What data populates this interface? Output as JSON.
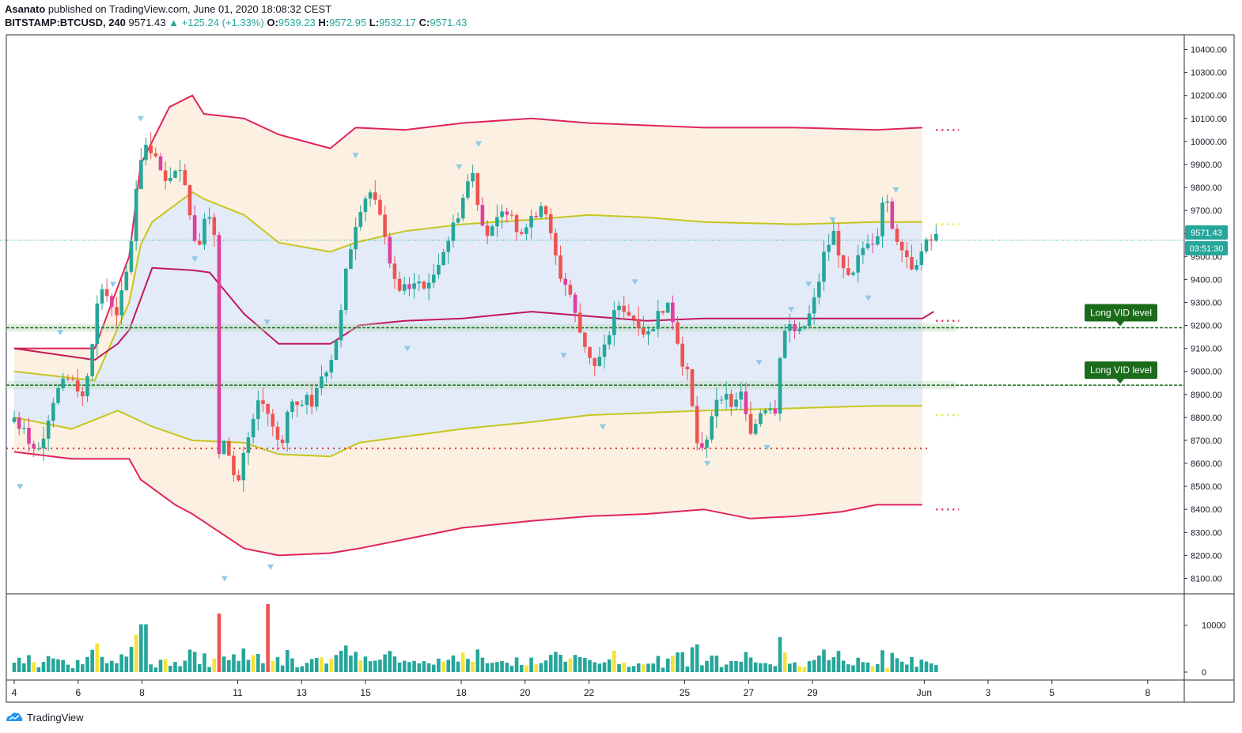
{
  "header": {
    "author": "Asanato",
    "published": "published on TradingView.com, June 01, 2020 18:08:32 CEST",
    "symbol": "BITSTAMP:BTCUSD, 240",
    "last": "9571.43",
    "change": "▲ +125.24 (+1.33%)",
    "o_label": "O:",
    "o": "9539.23",
    "h_label": "H:",
    "h": "9572.95",
    "l_label": "L:",
    "l": "9532.17",
    "c_label": "C:",
    "c": "9571.43"
  },
  "price_badge": "9571.43",
  "countdown_badge": "03:51:30",
  "annotations": [
    {
      "text": "Long VID level",
      "price": 9190
    },
    {
      "text": "Long VID level",
      "price": 8940
    }
  ],
  "footer": {
    "brand": "TradingView"
  },
  "colors": {
    "up": "#26a69a",
    "down": "#ef5350",
    "band": "#e0245e",
    "inner": "#c6c61f",
    "vid": "#1b6b1b"
  },
  "chart_data": {
    "type": "candlestick",
    "symbol": "BITSTAMP:BTCUSD",
    "interval": "240",
    "ylim": [
      8050,
      10450
    ],
    "y_ticks": [
      8100,
      8200,
      8300,
      8400,
      8500,
      8600,
      8700,
      8800,
      8900,
      9000,
      9100,
      9200,
      9300,
      9400,
      9500,
      9600,
      9700,
      9800,
      9900,
      10000,
      10100,
      10200,
      10300,
      10400
    ],
    "x_ticks": [
      {
        "label": "4",
        "pos": 0.0
      },
      {
        "label": "6",
        "pos": 0.0556
      },
      {
        "label": "8",
        "pos": 0.1111
      },
      {
        "label": "11",
        "pos": 0.1944
      },
      {
        "label": "13",
        "pos": 0.25
      },
      {
        "label": "15",
        "pos": 0.3056
      },
      {
        "label": "18",
        "pos": 0.3889
      },
      {
        "label": "20",
        "pos": 0.4444
      },
      {
        "label": "22",
        "pos": 0.5
      },
      {
        "label": "25",
        "pos": 0.5833
      },
      {
        "label": "27",
        "pos": 0.6389
      },
      {
        "label": "29",
        "pos": 0.6944
      },
      {
        "label": "Jun",
        "pos": 0.7917
      },
      {
        "label": "3",
        "pos": 0.8472
      },
      {
        "label": "5",
        "pos": 0.9028
      },
      {
        "label": "8",
        "pos": 0.9861
      }
    ],
    "close_path": [
      [
        0,
        8800
      ],
      [
        0.01,
        8720
      ],
      [
        0.02,
        8640
      ],
      [
        0.035,
        8900
      ],
      [
        0.05,
        8980
      ],
      [
        0.06,
        8880
      ],
      [
        0.075,
        9380
      ],
      [
        0.09,
        9250
      ],
      [
        0.1,
        9480
      ],
      [
        0.108,
        9900
      ],
      [
        0.115,
        10000
      ],
      [
        0.122,
        9950
      ],
      [
        0.13,
        9800
      ],
      [
        0.14,
        9900
      ],
      [
        0.148,
        9850
      ],
      [
        0.155,
        9600
      ],
      [
        0.16,
        9550
      ],
      [
        0.168,
        9750
      ],
      [
        0.175,
        9550
      ],
      [
        0.178,
        8630
      ],
      [
        0.185,
        8700
      ],
      [
        0.19,
        8560
      ],
      [
        0.195,
        8520
      ],
      [
        0.2,
        8650
      ],
      [
        0.207,
        8750
      ],
      [
        0.213,
        8880
      ],
      [
        0.22,
        8830
      ],
      [
        0.228,
        8700
      ],
      [
        0.235,
        8720
      ],
      [
        0.24,
        8900
      ],
      [
        0.247,
        8860
      ],
      [
        0.253,
        8900
      ],
      [
        0.26,
        8850
      ],
      [
        0.267,
        8980
      ],
      [
        0.275,
        9050
      ],
      [
        0.283,
        9200
      ],
      [
        0.29,
        9480
      ],
      [
        0.297,
        9650
      ],
      [
        0.303,
        9750
      ],
      [
        0.31,
        9780
      ],
      [
        0.317,
        9680
      ],
      [
        0.323,
        9600
      ],
      [
        0.33,
        9380
      ],
      [
        0.34,
        9350
      ],
      [
        0.35,
        9400
      ],
      [
        0.36,
        9350
      ],
      [
        0.37,
        9500
      ],
      [
        0.38,
        9600
      ],
      [
        0.39,
        9750
      ],
      [
        0.398,
        9880
      ],
      [
        0.405,
        9700
      ],
      [
        0.413,
        9580
      ],
      [
        0.42,
        9650
      ],
      [
        0.43,
        9720
      ],
      [
        0.437,
        9600
      ],
      [
        0.445,
        9650
      ],
      [
        0.455,
        9700
      ],
      [
        0.46,
        9760
      ],
      [
        0.468,
        9550
      ],
      [
        0.475,
        9420
      ],
      [
        0.483,
        9350
      ],
      [
        0.49,
        9200
      ],
      [
        0.498,
        9100
      ],
      [
        0.505,
        9020
      ],
      [
        0.513,
        9080
      ],
      [
        0.52,
        9220
      ],
      [
        0.527,
        9300
      ],
      [
        0.535,
        9250
      ],
      [
        0.543,
        9220
      ],
      [
        0.55,
        9150
      ],
      [
        0.558,
        9230
      ],
      [
        0.565,
        9290
      ],
      [
        0.572,
        9250
      ],
      [
        0.58,
        9070
      ],
      [
        0.587,
        8960
      ],
      [
        0.593,
        8700
      ],
      [
        0.6,
        8620
      ],
      [
        0.607,
        8820
      ],
      [
        0.613,
        8920
      ],
      [
        0.62,
        8880
      ],
      [
        0.627,
        8850
      ],
      [
        0.633,
        8900
      ],
      [
        0.64,
        8700
      ],
      [
        0.648,
        8820
      ],
      [
        0.655,
        8860
      ],
      [
        0.662,
        8840
      ],
      [
        0.668,
        9180
      ],
      [
        0.675,
        9200
      ],
      [
        0.683,
        9160
      ],
      [
        0.69,
        9220
      ],
      [
        0.697,
        9320
      ],
      [
        0.705,
        9520
      ],
      [
        0.713,
        9600
      ],
      [
        0.72,
        9480
      ],
      [
        0.728,
        9380
      ],
      [
        0.735,
        9500
      ],
      [
        0.742,
        9580
      ],
      [
        0.75,
        9570
      ],
      [
        0.757,
        9800
      ],
      [
        0.765,
        9600
      ],
      [
        0.772,
        9560
      ],
      [
        0.78,
        9460
      ],
      [
        0.787,
        9500
      ],
      [
        0.795,
        9560
      ],
      [
        0.802,
        9580
      ]
    ],
    "upper_band": [
      [
        0,
        9100
      ],
      [
        0.07,
        9100
      ],
      [
        0.1,
        9500
      ],
      [
        0.11,
        9900
      ],
      [
        0.135,
        10150
      ],
      [
        0.155,
        10200
      ],
      [
        0.165,
        10120
      ],
      [
        0.2,
        10100
      ],
      [
        0.23,
        10030
      ],
      [
        0.275,
        9970
      ],
      [
        0.297,
        10060
      ],
      [
        0.34,
        10050
      ],
      [
        0.39,
        10080
      ],
      [
        0.45,
        10100
      ],
      [
        0.5,
        10080
      ],
      [
        0.55,
        10070
      ],
      [
        0.6,
        10060
      ],
      [
        0.68,
        10060
      ],
      [
        0.75,
        10050
      ],
      [
        0.79,
        10060
      ]
    ],
    "upper_inner": [
      [
        0,
        9000
      ],
      [
        0.07,
        8960
      ],
      [
        0.1,
        9300
      ],
      [
        0.11,
        9550
      ],
      [
        0.12,
        9650
      ],
      [
        0.155,
        9780
      ],
      [
        0.165,
        9750
      ],
      [
        0.2,
        9680
      ],
      [
        0.23,
        9560
      ],
      [
        0.275,
        9520
      ],
      [
        0.297,
        9560
      ],
      [
        0.34,
        9610
      ],
      [
        0.39,
        9640
      ],
      [
        0.45,
        9660
      ],
      [
        0.5,
        9680
      ],
      [
        0.55,
        9670
      ],
      [
        0.6,
        9650
      ],
      [
        0.68,
        9640
      ],
      [
        0.75,
        9650
      ],
      [
        0.79,
        9650
      ]
    ],
    "middle": [
      [
        0,
        9100
      ],
      [
        0.07,
        9050
      ],
      [
        0.09,
        9120
      ],
      [
        0.1,
        9180
      ],
      [
        0.12,
        9450
      ],
      [
        0.155,
        9440
      ],
      [
        0.17,
        9430
      ],
      [
        0.2,
        9250
      ],
      [
        0.23,
        9120
      ],
      [
        0.275,
        9120
      ],
      [
        0.3,
        9200
      ],
      [
        0.34,
        9220
      ],
      [
        0.39,
        9230
      ],
      [
        0.45,
        9260
      ],
      [
        0.5,
        9240
      ],
      [
        0.55,
        9220
      ],
      [
        0.6,
        9230
      ],
      [
        0.68,
        9230
      ],
      [
        0.75,
        9230
      ],
      [
        0.79,
        9230
      ],
      [
        0.8,
        9260
      ]
    ],
    "lower_inner": [
      [
        0,
        8800
      ],
      [
        0.05,
        8750
      ],
      [
        0.09,
        8830
      ],
      [
        0.12,
        8760
      ],
      [
        0.155,
        8700
      ],
      [
        0.2,
        8690
      ],
      [
        0.23,
        8640
      ],
      [
        0.275,
        8630
      ],
      [
        0.3,
        8690
      ],
      [
        0.39,
        8750
      ],
      [
        0.45,
        8780
      ],
      [
        0.5,
        8810
      ],
      [
        0.55,
        8820
      ],
      [
        0.6,
        8830
      ],
      [
        0.68,
        8840
      ],
      [
        0.75,
        8850
      ],
      [
        0.79,
        8850
      ]
    ],
    "lower_band": [
      [
        0,
        8650
      ],
      [
        0.05,
        8620
      ],
      [
        0.1,
        8620
      ],
      [
        0.11,
        8530
      ],
      [
        0.14,
        8420
      ],
      [
        0.155,
        8380
      ],
      [
        0.17,
        8330
      ],
      [
        0.2,
        8230
      ],
      [
        0.23,
        8200
      ],
      [
        0.275,
        8210
      ],
      [
        0.3,
        8230
      ],
      [
        0.34,
        8270
      ],
      [
        0.39,
        8320
      ],
      [
        0.45,
        8350
      ],
      [
        0.5,
        8370
      ],
      [
        0.55,
        8380
      ],
      [
        0.6,
        8400
      ],
      [
        0.64,
        8360
      ],
      [
        0.68,
        8370
      ],
      [
        0.72,
        8390
      ],
      [
        0.75,
        8420
      ],
      [
        0.79,
        8420
      ]
    ],
    "levels": [
      {
        "price": 10050,
        "color": "#e0245e"
      },
      {
        "price": 9640,
        "color": "#e6e62a"
      },
      {
        "price": 9220,
        "color": "#e0245e"
      },
      {
        "price": 8810,
        "color": "#e6e62a"
      },
      {
        "price": 8400,
        "color": "#e0245e"
      }
    ],
    "volume": {
      "ylim": [
        0,
        14500
      ],
      "y_ticks": [
        0,
        10000
      ],
      "peaks": [
        {
          "pos": 0.178,
          "value": 12500
        },
        {
          "pos": 0.222,
          "value": 14500
        },
        {
          "pos": 0.113,
          "value": 10200
        }
      ]
    }
  }
}
